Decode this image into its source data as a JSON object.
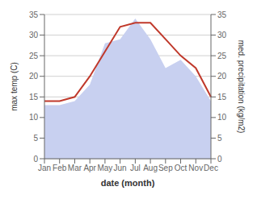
{
  "chart_data": {
    "type": "line",
    "xlabel": "date (month)",
    "ylabel": "max temp (C)",
    "y2label": "med. precipitation (kg/m2)",
    "categories": [
      "Jan",
      "Feb",
      "Mar",
      "Apr",
      "May",
      "Jun",
      "Jul",
      "Aug",
      "Sep",
      "Oct",
      "Nov",
      "Dec"
    ],
    "series": [
      {
        "type": "area",
        "axis": "y2",
        "color": "#c8d0f0",
        "values": [
          13,
          13,
          14,
          18,
          28,
          29,
          34,
          29,
          22,
          24,
          20,
          14
        ]
      },
      {
        "type": "line",
        "color": "#c0392b",
        "values": [
          14,
          14,
          15,
          20,
          26,
          32,
          33,
          33,
          29,
          25,
          22,
          15
        ]
      }
    ],
    "ylim": [
      0,
      35
    ],
    "yticks": [
      0,
      5,
      10,
      15,
      20,
      25,
      30,
      35
    ],
    "y2lim": [
      0,
      35
    ],
    "y2ticks": [
      0,
      5,
      10,
      15,
      20,
      25,
      30,
      35
    ],
    "grid": true
  }
}
